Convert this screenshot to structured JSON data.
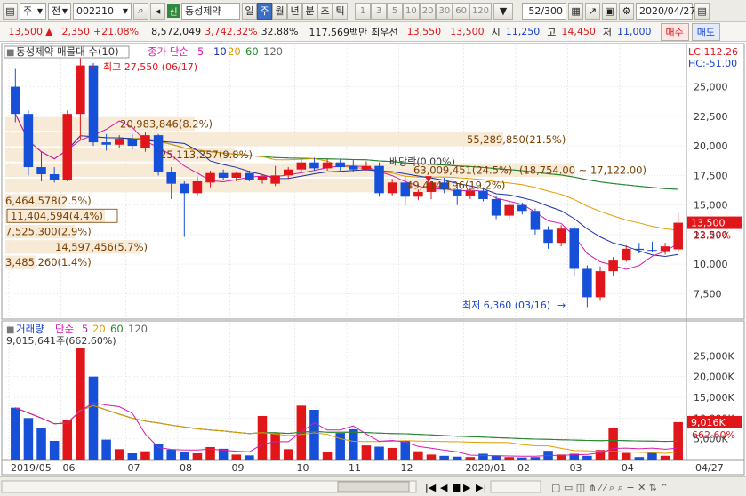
{
  "toolbar": {
    "market": "주",
    "market_type": "전",
    "code": "002210",
    "new_label": "신",
    "name": "동성제약",
    "periods": [
      "일",
      "주",
      "월",
      "년",
      "분",
      "초",
      "틱"
    ],
    "selected_period": "주",
    "intervals": [
      "1",
      "3",
      "5",
      "10",
      "20",
      "30",
      "60",
      "120"
    ],
    "count": "52/300",
    "date": "2020/04/27"
  },
  "quote": {
    "price": "13,500",
    "change": "2,350",
    "rate": "+21.08%",
    "volume": "8,572,049",
    "vol_ratio": "3,742.32%",
    "turnover": "32.88%",
    "amount": "117,569백만",
    "pref_label": "최우선",
    "ask": "13,550",
    "bid": "13,500",
    "open_label": "시",
    "open": "11,250",
    "high_label": "고",
    "high": "14,450",
    "low_label": "저",
    "low": "11,000",
    "buy_label": "매수",
    "sell_label": "매도"
  },
  "price_panel": {
    "legend_title": "동성제약 매물대 수(10)",
    "legend_ma_label": "종가 단순",
    "legend_ma": [
      "5",
      "10",
      "20",
      "60",
      "120"
    ],
    "lc": "LC:112.26",
    "hc": "HC:-51.00",
    "high_note": "최고 27,550 (06/17)",
    "low_note": "최저 6,360 (03/16)",
    "dividend": "배당락(0.00%)",
    "range_note": "(18,754.00 ~ 17,122.00)",
    "current_price": "13,500",
    "current_rate": "23.29%",
    "y_ticks": [
      "25,000",
      "22,500",
      "20,000",
      "17,500",
      "15,000",
      "12,500",
      "10,000",
      "7,500"
    ],
    "volume_profile": [
      {
        "label": "55,289,850(21.5%)",
        "low": 19900,
        "high": 21200,
        "frac": 1.0
      },
      {
        "label": "20,983,846(8.2%)",
        "low": 21200,
        "high": 22500,
        "frac": 0.38
      },
      {
        "label": "25,113,257(9.8%)",
        "low": 18600,
        "high": 19900,
        "frac": 0.46
      },
      {
        "label": "63,009,451(24.5%)",
        "low": 17300,
        "high": 18600,
        "frac": 1.14
      },
      {
        "label": "49,414,196(19.2%)",
        "low": 16000,
        "high": 17300,
        "frac": 0.9
      },
      {
        "label": "6,464,578(2.5%)",
        "low": 14700,
        "high": 16000,
        "frac": 0.12
      },
      {
        "label": "11,404,594(4.4%)",
        "low": 13400,
        "high": 14700,
        "frac": 0.2
      },
      {
        "label": "7,525,300(2.9%)",
        "low": 12100,
        "high": 13400,
        "frac": 0.14
      },
      {
        "label": "14,597,456(5.7%)",
        "low": 10800,
        "high": 12100,
        "frac": 0.27
      },
      {
        "label": "3,485,260(1.4%)",
        "low": 9500,
        "high": 10800,
        "frac": 0.06
      }
    ]
  },
  "volume_panel": {
    "legend_title": "거래량",
    "legend_ma_label": "단순",
    "legend_ma": [
      "5",
      "20",
      "60",
      "120"
    ],
    "max_note": "9,015,641주(662.60%)",
    "current_volume": "9,016K",
    "current_rate": "662.60%",
    "y_ticks": [
      "25,000K",
      "20,000K",
      "15,000K",
      "10,000K",
      "5,000K"
    ]
  },
  "x_labels": [
    "2019/05",
    "06",
    "07",
    "08",
    "09",
    "10",
    "11",
    "12",
    "2020/01",
    "02",
    "03",
    "04",
    "04/27"
  ],
  "chart_data": {
    "type": "candlestick",
    "ylim": [
      5500,
      28500
    ],
    "volume_ylim": [
      0,
      30000
    ],
    "candles": [
      {
        "o": 25000,
        "h": 26500,
        "l": 22000,
        "c": 22700
      },
      {
        "o": 22700,
        "h": 23000,
        "l": 17500,
        "c": 18200
      },
      {
        "o": 18200,
        "h": 19500,
        "l": 17000,
        "c": 17600
      },
      {
        "o": 17600,
        "h": 18200,
        "l": 16900,
        "c": 17100
      },
      {
        "o": 17100,
        "h": 23000,
        "l": 17000,
        "c": 22700
      },
      {
        "o": 22700,
        "h": 27550,
        "l": 20500,
        "c": 26800
      },
      {
        "o": 26800,
        "h": 27000,
        "l": 20000,
        "c": 20300
      },
      {
        "o": 20300,
        "h": 21000,
        "l": 19600,
        "c": 20100
      },
      {
        "o": 20100,
        "h": 20900,
        "l": 19800,
        "c": 20600
      },
      {
        "o": 20600,
        "h": 21000,
        "l": 19700,
        "c": 20000
      },
      {
        "o": 19800,
        "h": 21200,
        "l": 19500,
        "c": 20900
      },
      {
        "o": 20900,
        "h": 21000,
        "l": 17500,
        "c": 17800
      },
      {
        "o": 17800,
        "h": 18200,
        "l": 15500,
        "c": 16800
      },
      {
        "o": 16800,
        "h": 17000,
        "l": 12300,
        "c": 16000
      },
      {
        "o": 16000,
        "h": 17400,
        "l": 15800,
        "c": 17000
      },
      {
        "o": 16900,
        "h": 17900,
        "l": 16500,
        "c": 17700
      },
      {
        "o": 17700,
        "h": 18000,
        "l": 17100,
        "c": 17300
      },
      {
        "o": 17300,
        "h": 17800,
        "l": 17000,
        "c": 17700
      },
      {
        "o": 17700,
        "h": 17900,
        "l": 17000,
        "c": 17100
      },
      {
        "o": 17100,
        "h": 17600,
        "l": 16800,
        "c": 17400
      },
      {
        "o": 16800,
        "h": 18300,
        "l": 16600,
        "c": 17500
      },
      {
        "o": 17500,
        "h": 18200,
        "l": 17200,
        "c": 18000
      },
      {
        "o": 18000,
        "h": 18900,
        "l": 17700,
        "c": 18600
      },
      {
        "o": 18600,
        "h": 19000,
        "l": 17900,
        "c": 18100
      },
      {
        "o": 18100,
        "h": 18900,
        "l": 17900,
        "c": 18600
      },
      {
        "o": 18600,
        "h": 18900,
        "l": 17900,
        "c": 18200
      },
      {
        "o": 18300,
        "h": 18800,
        "l": 17800,
        "c": 18000
      },
      {
        "o": 18000,
        "h": 18700,
        "l": 17900,
        "c": 18300
      },
      {
        "o": 18300,
        "h": 18600,
        "l": 15700,
        "c": 16000
      },
      {
        "o": 16000,
        "h": 17200,
        "l": 15800,
        "c": 16900
      },
      {
        "o": 16900,
        "h": 17400,
        "l": 15000,
        "c": 15700
      },
      {
        "o": 15700,
        "h": 16300,
        "l": 15400,
        "c": 16100
      },
      {
        "o": 16100,
        "h": 17000,
        "l": 15500,
        "c": 16900
      },
      {
        "o": 16900,
        "h": 17300,
        "l": 16000,
        "c": 16300
      },
      {
        "o": 16300,
        "h": 16700,
        "l": 15000,
        "c": 15800
      },
      {
        "o": 15800,
        "h": 16500,
        "l": 15500,
        "c": 16200
      },
      {
        "o": 16200,
        "h": 16500,
        "l": 15300,
        "c": 15500
      },
      {
        "o": 15500,
        "h": 15800,
        "l": 13800,
        "c": 14100
      },
      {
        "o": 14100,
        "h": 15300,
        "l": 13700,
        "c": 15000
      },
      {
        "o": 15000,
        "h": 15200,
        "l": 14200,
        "c": 14500
      },
      {
        "o": 14500,
        "h": 14700,
        "l": 12500,
        "c": 12900
      },
      {
        "o": 12900,
        "h": 13200,
        "l": 11300,
        "c": 11800
      },
      {
        "o": 11800,
        "h": 13300,
        "l": 11500,
        "c": 13000
      },
      {
        "o": 13000,
        "h": 13200,
        "l": 9000,
        "c": 9600
      },
      {
        "o": 9600,
        "h": 9900,
        "l": 6360,
        "c": 7200
      },
      {
        "o": 7200,
        "h": 9800,
        "l": 6900,
        "c": 9400
      },
      {
        "o": 9400,
        "h": 10600,
        "l": 9000,
        "c": 10300
      },
      {
        "o": 10300,
        "h": 11600,
        "l": 10200,
        "c": 11300
      },
      {
        "o": 11300,
        "h": 11800,
        "l": 10900,
        "c": 11200
      },
      {
        "o": 11200,
        "h": 11900,
        "l": 11000,
        "c": 11150
      },
      {
        "o": 11100,
        "h": 11800,
        "l": 10800,
        "c": 11500
      },
      {
        "o": 11250,
        "h": 14450,
        "l": 11000,
        "c": 13500
      }
    ],
    "volumes": [
      12500,
      10000,
      7500,
      4500,
      9500,
      27000,
      20000,
      4800,
      2500,
      1500,
      2000,
      3800,
      2400,
      1800,
      1500,
      3000,
      2600,
      1200,
      1000,
      10500,
      6300,
      2500,
      13000,
      12000,
      1800,
      6400,
      7300,
      3400,
      3100,
      2800,
      4500,
      2000,
      1200,
      900,
      700,
      600,
      1400,
      1000,
      600,
      500,
      600,
      2100,
      1200,
      1400,
      900,
      2300,
      7600,
      1600,
      600,
      1700,
      900,
      9016
    ]
  }
}
